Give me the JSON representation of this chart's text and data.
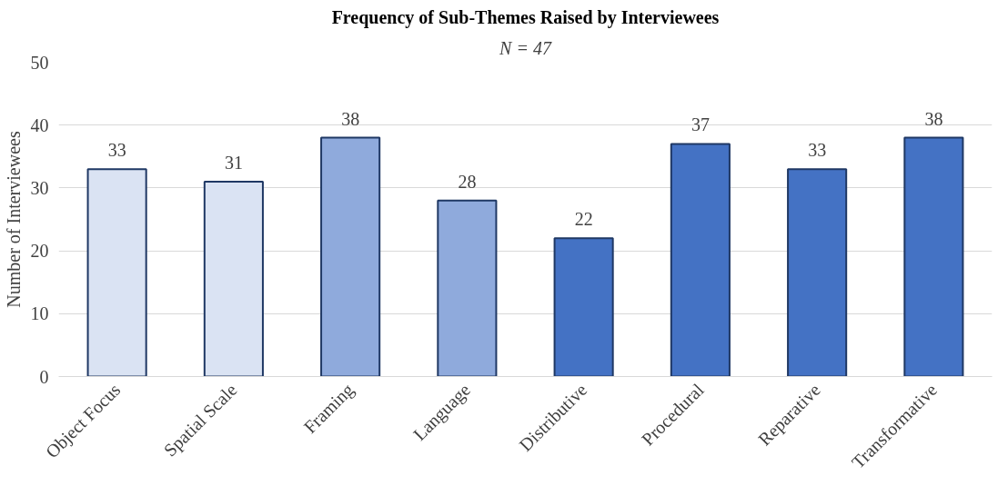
{
  "chart_data": {
    "type": "bar",
    "title": "Frequency of Sub-Themes Raised by Interviewees",
    "subtitle": "N = 47",
    "ylabel": "Number of Interviewees",
    "categories": [
      "Object Focus",
      "Spatial Scale",
      "Framing",
      "Language",
      "Distributive",
      "Procedural",
      "Reparative",
      "Transformative"
    ],
    "values": [
      33,
      31,
      38,
      28,
      22,
      37,
      33,
      38
    ],
    "colors": [
      "#dae3f3",
      "#dae3f3",
      "#8faadc",
      "#8faadc",
      "#4472c4",
      "#4472c4",
      "#4472c4",
      "#4472c4"
    ],
    "ylim": [
      0,
      50
    ],
    "yticks": [
      0,
      10,
      20,
      30,
      40,
      50
    ],
    "grid": "y",
    "data_labels": true
  }
}
